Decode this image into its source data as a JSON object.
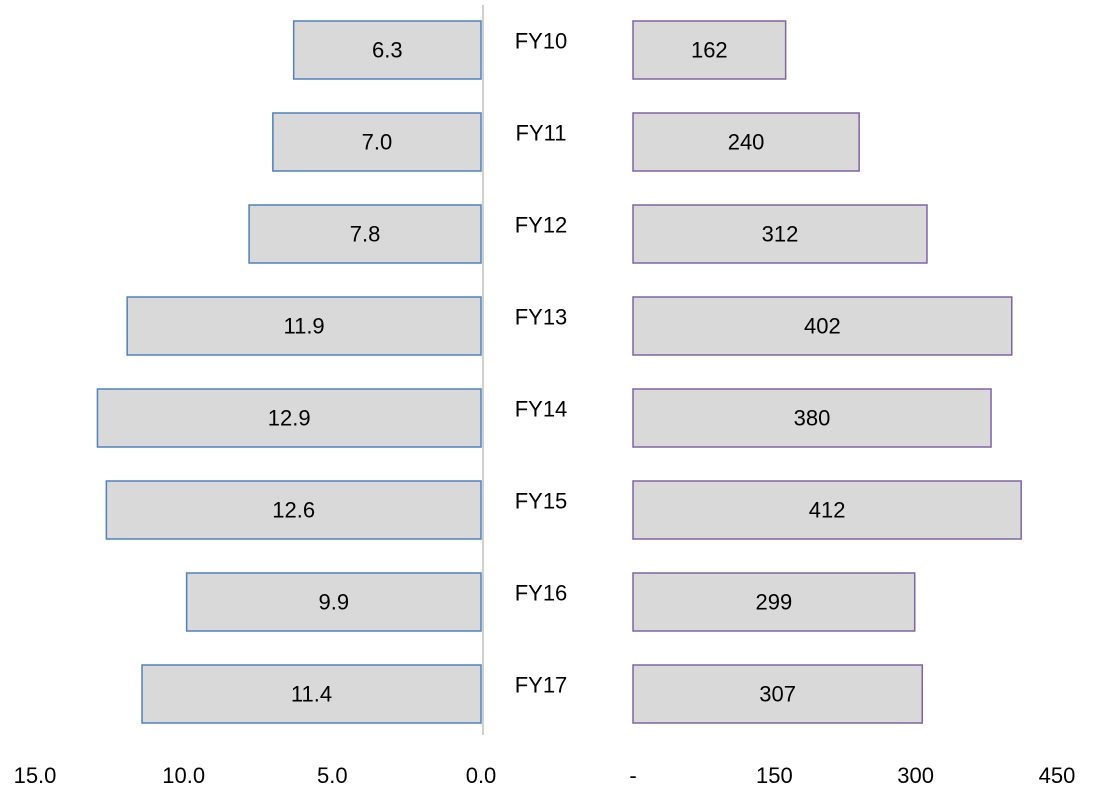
{
  "chart_data": {
    "type": "bar",
    "orientation": "horizontal",
    "layout": "back-to-back",
    "categories": [
      "FY10",
      "FY11",
      "FY12",
      "FY13",
      "FY14",
      "FY15",
      "FY16",
      "FY17"
    ],
    "series": [
      {
        "values": [
          6.3,
          7.0,
          7.8,
          11.9,
          12.9,
          12.6,
          9.9,
          11.4
        ],
        "data_labels": [
          "6.3",
          "7.0",
          "7.8",
          "11.9",
          "12.9",
          "12.6",
          "9.9",
          "11.4"
        ],
        "fill_color": "#d9d9d9",
        "border_color": "#4f81bd",
        "direction": "left"
      },
      {
        "values": [
          162,
          240,
          312,
          402,
          380,
          412,
          299,
          307
        ],
        "data_labels": [
          "162",
          "240",
          "312",
          "402",
          "380",
          "412",
          "299",
          "307"
        ],
        "fill_color": "#d9d9d9",
        "border_color": "#8064a2",
        "direction": "right"
      }
    ],
    "left_axis": {
      "range": [
        0,
        15
      ],
      "reversed": true,
      "tick_labels": [
        "15.0",
        "10.0",
        "5.0",
        "0.0"
      ],
      "tick_values": [
        15,
        10,
        5,
        0
      ]
    },
    "right_axis": {
      "range": [
        0,
        450
      ],
      "tick_labels": [
        "-",
        "150",
        "300",
        "450"
      ],
      "tick_values": [
        0,
        150,
        300,
        450
      ]
    },
    "center_line_color": "#bfbfbf",
    "grid": false,
    "legend": "none",
    "title": "",
    "xlabel": "",
    "ylabel": ""
  }
}
